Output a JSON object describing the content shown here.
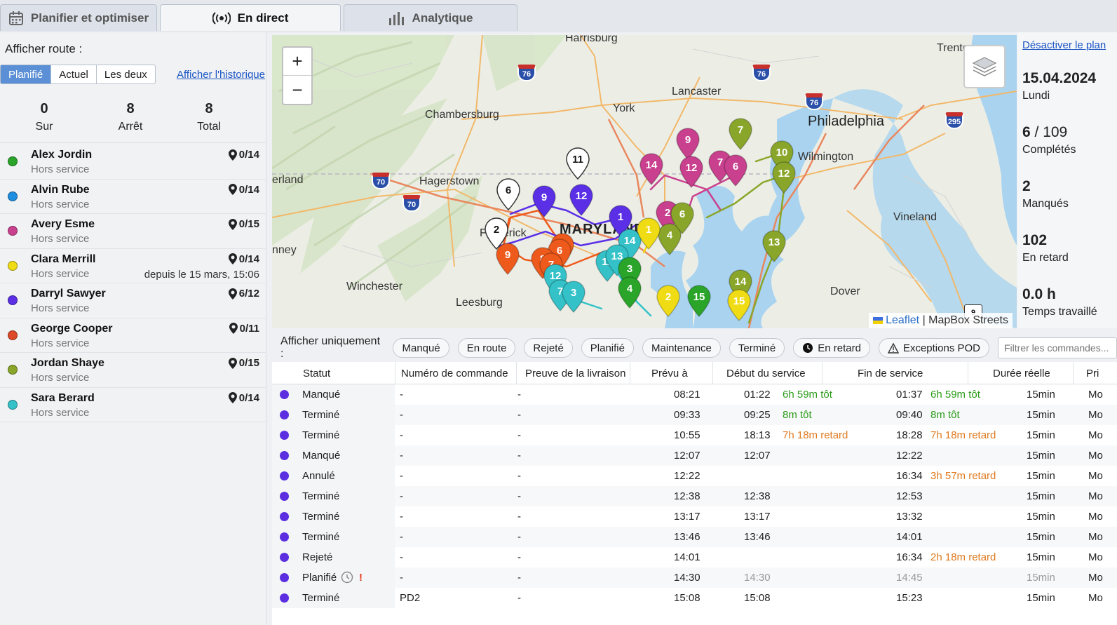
{
  "tabs": [
    {
      "label": "Planifier et optimiser",
      "icon": "calendar-icon"
    },
    {
      "label": "En direct",
      "icon": "live-broadcast-icon"
    },
    {
      "label": "Analytique",
      "icon": "bar-chart-icon"
    }
  ],
  "left": {
    "route_label": "Afficher route :",
    "segments": [
      "Planifié",
      "Actuel",
      "Les deux"
    ],
    "active_segment": "Planifié",
    "history_link": "Afficher l'historique",
    "stats": [
      {
        "value": "0",
        "label": "Sur"
      },
      {
        "value": "8",
        "label": "Arrêt"
      },
      {
        "value": "8",
        "label": "Total"
      }
    ],
    "drivers": [
      {
        "name": "Alex Jordin",
        "status": "Hors service",
        "count": "0/14",
        "color": "#2aa52a",
        "since": ""
      },
      {
        "name": "Alvin Rube",
        "status": "Hors service",
        "count": "0/14",
        "color": "#1e8fe0",
        "since": ""
      },
      {
        "name": "Avery Esme",
        "status": "Hors service",
        "count": "0/15",
        "color": "#c9408e",
        "since": ""
      },
      {
        "name": "Clara Merrill",
        "status": "Hors service",
        "count": "0/14",
        "color": "#f0dc14",
        "since": "depuis le 15 mars, 15:06"
      },
      {
        "name": "Darryl Sawyer",
        "status": "Hors service",
        "count": "6/12",
        "color": "#5a2fe6",
        "since": ""
      },
      {
        "name": "George Cooper",
        "status": "Hors service",
        "count": "0/11",
        "color": "#dc4a2a",
        "since": ""
      },
      {
        "name": "Jordan Shaye",
        "status": "Hors service",
        "count": "0/15",
        "color": "#8aa62a",
        "since": ""
      },
      {
        "name": "Sara Berard",
        "status": "Hors service",
        "count": "0/14",
        "color": "#34c2c8",
        "since": ""
      }
    ]
  },
  "map": {
    "zoom_in": "+",
    "zoom_out": "−",
    "places": [
      "Harrisburg",
      "Lancaster",
      "York",
      "Philadelphia",
      "Chambersburg",
      "Wilmington",
      "Hagerstown",
      "Frederick",
      "MARYLAND",
      "Vineland",
      "Winchester",
      "Leesburg",
      "Dover",
      "Trenton",
      "erland",
      "nney"
    ],
    "attribution_leaflet": "Leaflet",
    "attribution_sep": "|",
    "attribution_tiles": "MapBox Streets",
    "markers": [
      {
        "label": "6",
        "color": "#ffffff"
      },
      {
        "label": "2",
        "color": "#ffffff"
      },
      {
        "label": "11",
        "color": "#ffffff"
      },
      {
        "label": "9",
        "color": "#5a2fe6"
      },
      {
        "label": "12",
        "color": "#5a2fe6"
      },
      {
        "label": "1",
        "color": "#5a2fe6"
      },
      {
        "label": "9",
        "color": "#ee5a1c"
      },
      {
        "label": "5",
        "color": "#ee5a1c"
      },
      {
        "label": "6",
        "color": "#ee5a1c"
      },
      {
        "label": "8",
        "color": "#ee5a1c"
      },
      {
        "label": "7",
        "color": "#ee5a1c"
      },
      {
        "label": "14",
        "color": "#c9408e"
      },
      {
        "label": "9",
        "color": "#c9408e"
      },
      {
        "label": "12",
        "color": "#c9408e"
      },
      {
        "label": "7",
        "color": "#c9408e"
      },
      {
        "label": "6",
        "color": "#c9408e"
      },
      {
        "label": "2",
        "color": "#c9408e"
      },
      {
        "label": "7",
        "color": "#8aa62a"
      },
      {
        "label": "10",
        "color": "#8aa62a"
      },
      {
        "label": "12",
        "color": "#8aa62a"
      },
      {
        "label": "13",
        "color": "#8aa62a"
      },
      {
        "label": "14",
        "color": "#8aa62a"
      },
      {
        "label": "4",
        "color": "#8aa62a"
      },
      {
        "label": "6",
        "color": "#8aa62a"
      },
      {
        "label": "14",
        "color": "#34c2c8"
      },
      {
        "label": "11",
        "color": "#34c2c8"
      },
      {
        "label": "13",
        "color": "#34c2c8"
      },
      {
        "label": "12",
        "color": "#34c2c8"
      },
      {
        "label": "7",
        "color": "#34c2c8"
      },
      {
        "label": "3",
        "color": "#34c2c8"
      },
      {
        "label": "3",
        "color": "#2aa52a"
      },
      {
        "label": "4",
        "color": "#2aa52a"
      },
      {
        "label": "15",
        "color": "#2aa52a"
      },
      {
        "label": "1",
        "color": "#f0dc14"
      },
      {
        "label": "2",
        "color": "#f0dc14"
      },
      {
        "label": "15",
        "color": "#f0dc14"
      }
    ],
    "highways": [
      "76",
      "76",
      "76",
      "70",
      "70",
      "295",
      "9"
    ]
  },
  "right": {
    "disable_link": "Désactiver le plan",
    "date": "15.04.2024",
    "weekday": "Lundi",
    "completed_value": "6",
    "completed_total": "109",
    "completed_label": "Complétés",
    "missed_value": "2",
    "missed_label": "Manqués",
    "late_value": "102",
    "late_label": "En retard",
    "hours_value": "0.0 h",
    "hours_label": "Temps travaillé"
  },
  "filters": {
    "label": "Afficher uniquement :",
    "chips": [
      "Manqué",
      "En route",
      "Rejeté",
      "Planifié",
      "Maintenance",
      "Terminé",
      "En retard",
      "Exceptions POD"
    ],
    "search_placeholder": "Filtrer les commandes..."
  },
  "table": {
    "headers": [
      "Statut",
      "Numéro de commande",
      "Preuve de la livraison",
      "Prévu à",
      "Début du service",
      "Fin de service",
      "Durée réelle",
      "Pri"
    ],
    "rows": [
      {
        "status": "Manqué",
        "order": "-",
        "pod": "-",
        "planned": "08:21",
        "start": "01:22",
        "start_note": "6h 59m tôt",
        "start_note_type": "green",
        "end": "01:37",
        "end_note": "6h 59m tôt",
        "end_note_type": "green",
        "duration": "15min",
        "pri": "Mo",
        "muted": false,
        "icons": false
      },
      {
        "status": "Terminé",
        "order": "-",
        "pod": "-",
        "planned": "09:33",
        "start": "09:25",
        "start_note": "8m tôt",
        "start_note_type": "green",
        "end": "09:40",
        "end_note": "8m tôt",
        "end_note_type": "green",
        "duration": "15min",
        "pri": "Mo",
        "muted": false,
        "icons": false
      },
      {
        "status": "Terminé",
        "order": "-",
        "pod": "-",
        "planned": "10:55",
        "start": "18:13",
        "start_note": "7h 18m retard",
        "start_note_type": "orange",
        "end": "18:28",
        "end_note": "7h 18m retard",
        "end_note_type": "orange",
        "duration": "15min",
        "pri": "Mo",
        "muted": false,
        "icons": false
      },
      {
        "status": "Manqué",
        "order": "-",
        "pod": "-",
        "planned": "12:07",
        "start": "12:07",
        "start_note": "",
        "start_note_type": "",
        "end": "12:22",
        "end_note": "",
        "end_note_type": "",
        "duration": "15min",
        "pri": "Mo",
        "muted": false,
        "icons": false
      },
      {
        "status": "Annulé",
        "order": "-",
        "pod": "-",
        "planned": "12:22",
        "start": "",
        "start_note": "",
        "start_note_type": "",
        "end": "16:34",
        "end_note": "3h 57m retard",
        "end_note_type": "orange",
        "duration": "15min",
        "pri": "Mo",
        "muted": false,
        "icons": false
      },
      {
        "status": "Terminé",
        "order": "-",
        "pod": "-",
        "planned": "12:38",
        "start": "12:38",
        "start_note": "",
        "start_note_type": "",
        "end": "12:53",
        "end_note": "",
        "end_note_type": "",
        "duration": "15min",
        "pri": "Mo",
        "muted": false,
        "icons": false
      },
      {
        "status": "Terminé",
        "order": "-",
        "pod": "-",
        "planned": "13:17",
        "start": "13:17",
        "start_note": "",
        "start_note_type": "",
        "end": "13:32",
        "end_note": "",
        "end_note_type": "",
        "duration": "15min",
        "pri": "Mo",
        "muted": false,
        "icons": false
      },
      {
        "status": "Terminé",
        "order": "-",
        "pod": "-",
        "planned": "13:46",
        "start": "13:46",
        "start_note": "",
        "start_note_type": "",
        "end": "14:01",
        "end_note": "",
        "end_note_type": "",
        "duration": "15min",
        "pri": "Mo",
        "muted": false,
        "icons": false
      },
      {
        "status": "Rejeté",
        "order": "-",
        "pod": "-",
        "planned": "14:01",
        "start": "",
        "start_note": "",
        "start_note_type": "",
        "end": "16:34",
        "end_note": "2h 18m retard",
        "end_note_type": "orange",
        "duration": "15min",
        "pri": "Mo",
        "muted": false,
        "icons": false
      },
      {
        "status": "Planifié",
        "order": "-",
        "pod": "-",
        "planned": "14:30",
        "start": "14:30",
        "start_note": "",
        "start_note_type": "",
        "end": "14:45",
        "end_note": "",
        "end_note_type": "",
        "duration": "15min",
        "pri": "Mo",
        "muted": true,
        "icons": true
      },
      {
        "status": "Terminé",
        "order": "PD2",
        "pod": "-",
        "planned": "15:08",
        "start": "15:08",
        "start_note": "",
        "start_note_type": "",
        "end": "15:23",
        "end_note": "",
        "end_note_type": "",
        "duration": "15min",
        "pri": "Mo",
        "muted": false,
        "icons": false
      }
    ]
  },
  "colors": {
    "accent": "#5b8fd6",
    "link": "#1a55c4",
    "early": "#2c9b1a",
    "late": "#e07a1f",
    "status_dot": "#5b2fe0"
  }
}
